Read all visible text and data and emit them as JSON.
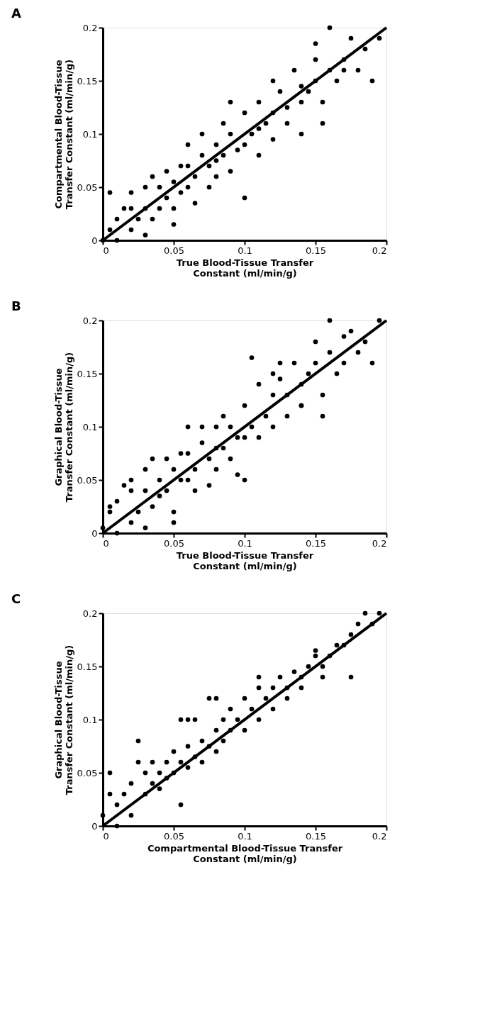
{
  "chart_data": [
    {
      "type": "scatter",
      "title": "A",
      "xlabel": "True Blood-Tissue Transfer\nConstant (ml/min/g)",
      "ylabel": "Compartmental Blood-Tissue\nTransfer Constant (ml/min/g)",
      "xlim": [
        0,
        0.2
      ],
      "ylim": [
        0,
        0.2
      ],
      "xticks": [
        0,
        0.05,
        0.1,
        0.15,
        0.2
      ],
      "yticks": [
        0,
        0.05,
        0.1,
        0.15,
        0.2
      ],
      "grid": false,
      "legend": false,
      "series": [
        {
          "type": "scatter",
          "marker": "circle",
          "color": "#000000",
          "x": [
            0,
            0.005,
            0.01,
            0.01,
            0.015,
            0.02,
            0.02,
            0.025,
            0.03,
            0.03,
            0.035,
            0.035,
            0.04,
            0.04,
            0.045,
            0.045,
            0.05,
            0.05,
            0.055,
            0.055,
            0.06,
            0.06,
            0.065,
            0.065,
            0.07,
            0.07,
            0.075,
            0.075,
            0.08,
            0.08,
            0.085,
            0.085,
            0.09,
            0.09,
            0.095,
            0.1,
            0.1,
            0.1,
            0.105,
            0.11,
            0.11,
            0.115,
            0.12,
            0.12,
            0.125,
            0.13,
            0.13,
            0.135,
            0.14,
            0.14,
            0.145,
            0.15,
            0.15,
            0.155,
            0.155,
            0.16,
            0.16,
            0.165,
            0.17,
            0.175,
            0.18,
            0.185,
            0.19,
            0.195,
            0.15,
            0.05,
            0.03,
            0.005,
            0.12,
            0.09,
            0.02,
            0.06,
            0.08,
            0.11,
            0.14,
            0.17
          ],
          "values": [
            0,
            0.01,
            0.02,
            0,
            0.03,
            0.01,
            0.045,
            0.02,
            0.03,
            0.005,
            0.06,
            0.02,
            0.05,
            0.03,
            0.065,
            0.04,
            0.055,
            0.03,
            0.07,
            0.045,
            0.09,
            0.05,
            0.06,
            0.035,
            0.08,
            0.1,
            0.07,
            0.05,
            0.09,
            0.06,
            0.11,
            0.08,
            0.1,
            0.065,
            0.085,
            0.12,
            0.09,
            0.04,
            0.1,
            0.13,
            0.08,
            0.11,
            0.12,
            0.095,
            0.14,
            0.11,
            0.125,
            0.16,
            0.13,
            0.1,
            0.14,
            0.17,
            0.15,
            0.13,
            0.11,
            0.16,
            0.2,
            0.15,
            0.17,
            0.19,
            0.16,
            0.18,
            0.15,
            0.19,
            0.185,
            0.015,
            0.05,
            0.045,
            0.15,
            0.13,
            0.03,
            0.07,
            0.075,
            0.105,
            0.145,
            0.16
          ]
        },
        {
          "type": "line",
          "color": "#000000",
          "line_style": "solid",
          "x": [
            0,
            0.2
          ],
          "values": [
            0,
            0.2
          ]
        }
      ]
    },
    {
      "type": "scatter",
      "title": "B",
      "xlabel": "True Blood-Tissue Transfer\nConstant (ml/min/g)",
      "ylabel": "Graphical Blood-Tissue\nTransfer Constant (ml/min/g)",
      "xlim": [
        0,
        0.2
      ],
      "ylim": [
        0,
        0.2
      ],
      "xticks": [
        0,
        0.05,
        0.1,
        0.15,
        0.2
      ],
      "yticks": [
        0,
        0.05,
        0.1,
        0.15,
        0.2
      ],
      "grid": false,
      "legend": false,
      "series": [
        {
          "type": "scatter",
          "marker": "circle",
          "color": "#000000",
          "x": [
            0,
            0.005,
            0.01,
            0.01,
            0.015,
            0.02,
            0.02,
            0.025,
            0.03,
            0.03,
            0.035,
            0.035,
            0.04,
            0.04,
            0.045,
            0.045,
            0.05,
            0.05,
            0.055,
            0.055,
            0.06,
            0.06,
            0.065,
            0.065,
            0.07,
            0.07,
            0.075,
            0.075,
            0.08,
            0.08,
            0.085,
            0.085,
            0.09,
            0.09,
            0.095,
            0.1,
            0.1,
            0.1,
            0.105,
            0.11,
            0.11,
            0.115,
            0.12,
            0.12,
            0.125,
            0.13,
            0.13,
            0.135,
            0.14,
            0.14,
            0.145,
            0.15,
            0.15,
            0.155,
            0.155,
            0.16,
            0.16,
            0.165,
            0.17,
            0.175,
            0.18,
            0.185,
            0.19,
            0.195,
            0.125,
            0.05,
            0.03,
            0.005,
            0.12,
            0.095,
            0.02,
            0.06,
            0.08,
            0.105,
            0.14,
            0.17
          ],
          "values": [
            0.005,
            0.02,
            0.03,
            0,
            0.045,
            0.01,
            0.04,
            0.02,
            0.04,
            0.005,
            0.07,
            0.025,
            0.05,
            0.035,
            0.07,
            0.04,
            0.06,
            0.02,
            0.075,
            0.05,
            0.1,
            0.05,
            0.06,
            0.04,
            0.085,
            0.1,
            0.07,
            0.045,
            0.1,
            0.06,
            0.11,
            0.08,
            0.1,
            0.07,
            0.09,
            0.12,
            0.09,
            0.05,
            0.1,
            0.14,
            0.09,
            0.11,
            0.13,
            0.1,
            0.145,
            0.11,
            0.13,
            0.16,
            0.14,
            0.12,
            0.15,
            0.18,
            0.16,
            0.13,
            0.11,
            0.17,
            0.2,
            0.15,
            0.16,
            0.19,
            0.17,
            0.18,
            0.16,
            0.2,
            0.16,
            0.01,
            0.06,
            0.025,
            0.15,
            0.055,
            0.05,
            0.075,
            0.08,
            0.165,
            0.12,
            0.185
          ]
        },
        {
          "type": "line",
          "color": "#000000",
          "line_style": "solid",
          "x": [
            0,
            0.2
          ],
          "values": [
            0,
            0.2
          ]
        }
      ]
    },
    {
      "type": "scatter",
      "title": "C",
      "xlabel": "Compartmental Blood-Tissue Transfer\nConstant (ml/min/g)",
      "ylabel": "Graphical Blood-Tissue\nTransfer Constant (ml/min/g)",
      "xlim": [
        0,
        0.2
      ],
      "ylim": [
        0,
        0.2
      ],
      "xticks": [
        0,
        0.05,
        0.1,
        0.15,
        0.2
      ],
      "yticks": [
        0,
        0.05,
        0.1,
        0.15,
        0.2
      ],
      "grid": false,
      "legend": false,
      "series": [
        {
          "type": "scatter",
          "marker": "circle",
          "color": "#000000",
          "x": [
            0,
            0.005,
            0.005,
            0.01,
            0.01,
            0.015,
            0.02,
            0.02,
            0.025,
            0.03,
            0.03,
            0.035,
            0.035,
            0.04,
            0.04,
            0.045,
            0.045,
            0.05,
            0.05,
            0.055,
            0.055,
            0.06,
            0.06,
            0.065,
            0.065,
            0.07,
            0.07,
            0.075,
            0.075,
            0.08,
            0.08,
            0.085,
            0.085,
            0.09,
            0.09,
            0.095,
            0.1,
            0.1,
            0.105,
            0.11,
            0.11,
            0.115,
            0.12,
            0.12,
            0.125,
            0.13,
            0.13,
            0.135,
            0.14,
            0.14,
            0.145,
            0.15,
            0.155,
            0.155,
            0.16,
            0.165,
            0.17,
            0.175,
            0.18,
            0.185,
            0.19,
            0.195,
            0.055,
            0.025,
            0.175,
            0.06,
            0.08,
            0.11,
            0.15
          ],
          "values": [
            0.01,
            0.03,
            0.05,
            0.02,
            0,
            0.03,
            0.01,
            0.04,
            0.08,
            0.03,
            0.05,
            0.04,
            0.06,
            0.05,
            0.035,
            0.06,
            0.045,
            0.05,
            0.07,
            0.06,
            0.02,
            0.075,
            0.055,
            0.1,
            0.065,
            0.08,
            0.06,
            0.12,
            0.075,
            0.09,
            0.07,
            0.1,
            0.08,
            0.09,
            0.11,
            0.1,
            0.12,
            0.09,
            0.11,
            0.13,
            0.1,
            0.12,
            0.13,
            0.11,
            0.14,
            0.13,
            0.12,
            0.145,
            0.14,
            0.13,
            0.15,
            0.16,
            0.15,
            0.14,
            0.16,
            0.17,
            0.17,
            0.18,
            0.19,
            0.2,
            0.19,
            0.2,
            0.1,
            0.06,
            0.14,
            0.1,
            0.12,
            0.14,
            0.165
          ]
        },
        {
          "type": "line",
          "color": "#000000",
          "line_style": "solid",
          "x": [
            0,
            0.2
          ],
          "values": [
            0,
            0.2
          ]
        }
      ]
    }
  ]
}
